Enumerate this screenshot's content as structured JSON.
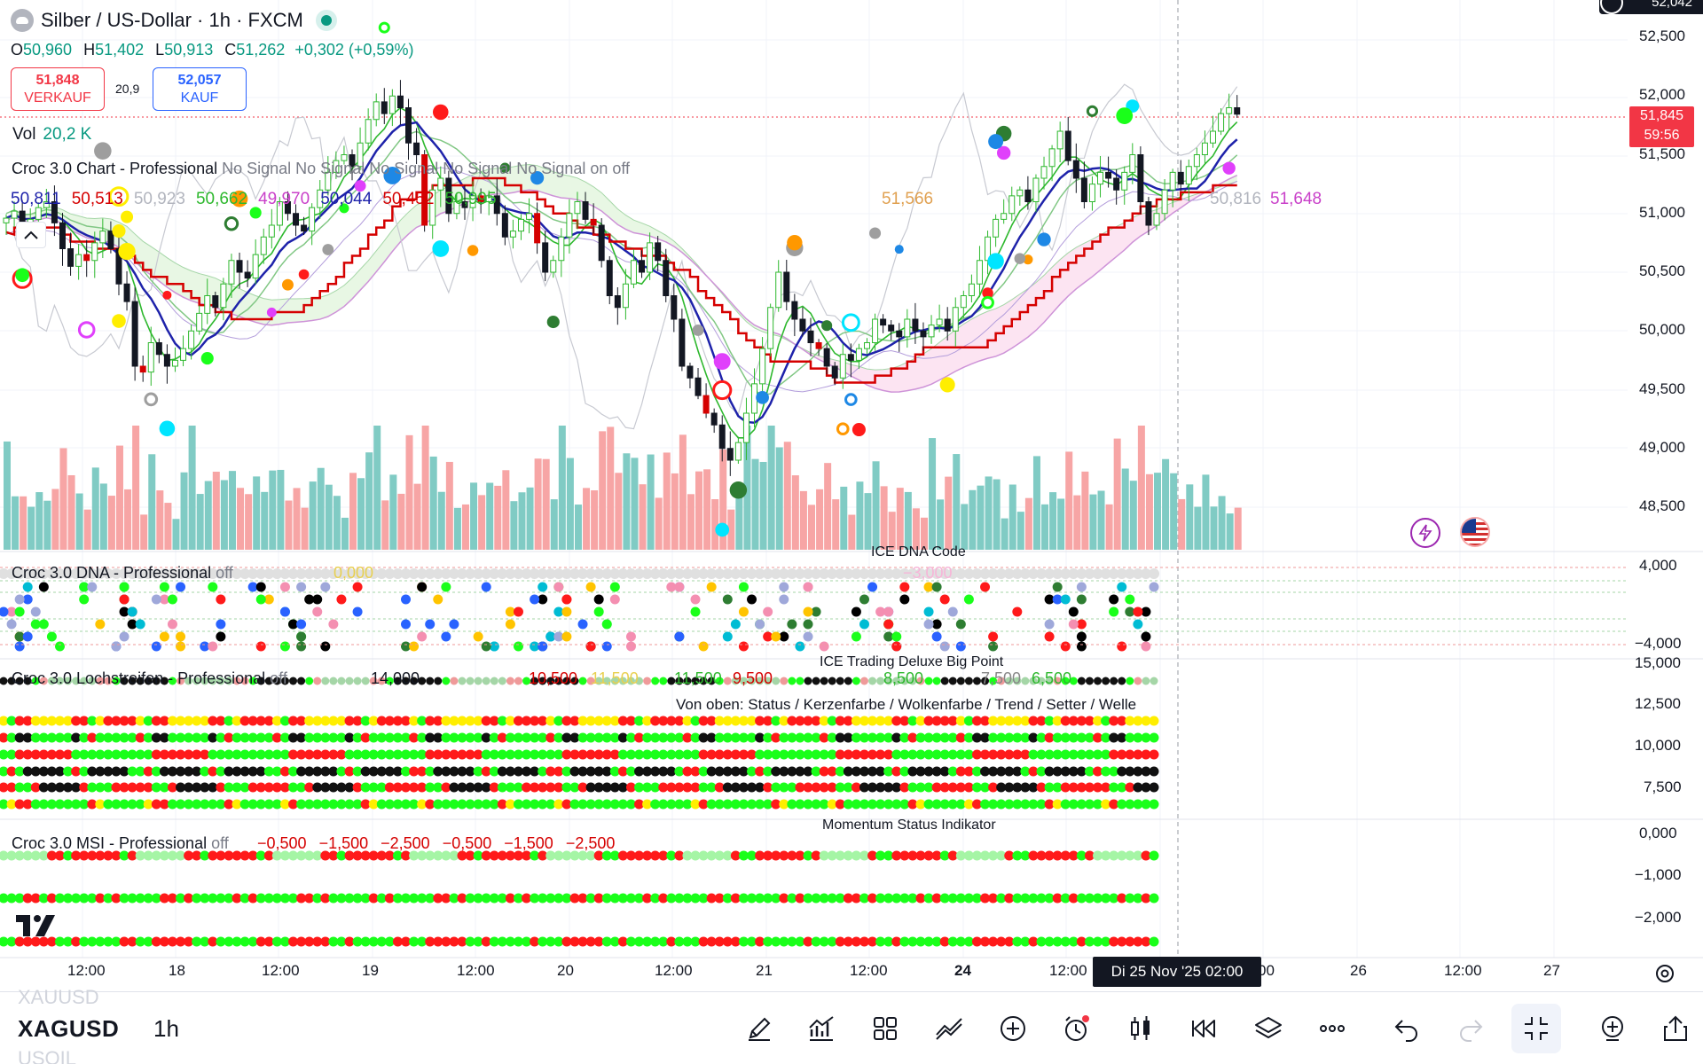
{
  "symbol": {
    "title": "Silber / US-Dollar · 1h · FXCM",
    "ticker": "XAGUSD",
    "ticker_above": "XAUUSD",
    "ticker_below": "USOIL",
    "interval": "1h"
  },
  "ohlc": {
    "o_key": "O",
    "o": "50,960",
    "h_key": "H",
    "h": "51,402",
    "l_key": "L",
    "l": "50,913",
    "c_key": "C",
    "c": "51,262",
    "change": "+0,302 (+0,59%)"
  },
  "trade": {
    "sell_price": "51,848",
    "sell_label": "VERKAUF",
    "spread": "20,9",
    "buy_price": "52,057",
    "buy_label": "KAUF"
  },
  "volume": {
    "label": "Vol",
    "value": "20,2 K"
  },
  "indicator_chart": {
    "name": "Croc 3.0 Chart - Professional",
    "signals": "No Signal No Signal No Signal No Signal No Signal on off",
    "values": [
      {
        "text": "50,811",
        "color": "#1e22aa"
      },
      {
        "text": "50,513",
        "color": "#d50000"
      },
      {
        "text": "50,923",
        "color": "#b2b5be"
      },
      {
        "text": "50,662",
        "color": "#2eb82e"
      },
      {
        "text": "49,970",
        "color": "#c940c9"
      },
      {
        "text": "50,044",
        "color": "#1e22aa"
      },
      {
        "text": "50,452",
        "color": "#d50000"
      },
      {
        "text": "50,995",
        "color": "#2eb82e"
      }
    ],
    "extra_value": "51,566",
    "extra_value2": "50,816",
    "extra_value3": "51,648"
  },
  "price_axis": {
    "labels": [
      "52,500",
      "52,000",
      "51,500",
      "51,000",
      "50,500",
      "50,000",
      "49,500",
      "49,000",
      "48,500"
    ],
    "top_label": "52,042",
    "current_price": "51,845",
    "countdown": "59:56"
  },
  "dna_pane": {
    "name": "Croc 3.0 DNA - Professional",
    "off": "off",
    "subtitle": "ICE DNA Code",
    "val_a": "0,000",
    "val_b": "−3,000",
    "axis": [
      "4,000",
      "−4,000"
    ]
  },
  "loch_pane": {
    "name": "Croc 3.0 Lochstreifen - Professional",
    "off": "off",
    "subtitle": "ICE Trading Deluxe Big Point",
    "caption": "Von oben: Status / Kerzenfarbe / Wolkenfarbe / Trend / Setter / Welle",
    "vals": [
      "14,000",
      "10,500",
      "11,500",
      "11,500",
      "9,500",
      "8,500",
      "7,500",
      "6,500"
    ],
    "axis": [
      "15,000",
      "12,500",
      "10,000",
      "7,500"
    ]
  },
  "msi_pane": {
    "name": "Croc 3.0 MSI - Professional",
    "off": "off",
    "subtitle": "Momentum Status Indikator",
    "vals": [
      "−0,500",
      "−1,500",
      "−2,500",
      "−0,500",
      "−1,500",
      "−2,500"
    ],
    "axis": [
      "0,000",
      "−1,000",
      "−2,000"
    ]
  },
  "time_axis": {
    "labels": [
      "12:00",
      "18",
      "12:00",
      "19",
      "12:00",
      "20",
      "12:00",
      "21",
      "12:00",
      "24",
      "12:00",
      "00",
      "26",
      "12:00",
      "27"
    ],
    "crosshair": "Di 25 Nov '25  02:00"
  },
  "toolbar": {
    "tools": [
      "pencil-icon",
      "indicators-icon",
      "grid-icon",
      "drawings-icon",
      "add-icon",
      "alert-icon",
      "candle-style-icon",
      "replay-icon",
      "layers-icon",
      "more-icon",
      "undo-icon",
      "redo-icon",
      "fullscreen-exit-icon",
      "add-pane-icon",
      "share-icon"
    ]
  },
  "colors": {
    "up": "#26a69a",
    "down": "#ef5350",
    "vol_up": "#80cbc4",
    "vol_down": "#f7a5a5",
    "tenkan": "#1e22aa",
    "kijun": "#d50000",
    "cloud_pink": "#fce4f2",
    "cloud_green": "#e8f7e4",
    "dot_red": "#ff1a1a",
    "dot_green": "#1aff1a",
    "dot_black": "#111111",
    "dot_yellow": "#ffee00"
  },
  "chart_data": {
    "type": "candlestick",
    "ylim": [
      48200,
      52700
    ],
    "y_ticks": [
      52500,
      52000,
      51500,
      51000,
      50500,
      50000,
      49500,
      49000,
      48500
    ],
    "current": 51845,
    "close": [
      50960,
      51020,
      50880,
      50950,
      51050,
      51100,
      50920,
      50700,
      50550,
      50650,
      50600,
      50750,
      50850,
      50700,
      50400,
      50250,
      49700,
      49650,
      49900,
      49800,
      49700,
      49750,
      49850,
      50000,
      50150,
      50300,
      50200,
      50400,
      50600,
      50500,
      50450,
      50650,
      50800,
      50900,
      51100,
      51000,
      50900,
      50850,
      51050,
      51200,
      51350,
      51450,
      51500,
      51400,
      51600,
      51800,
      51950,
      51850,
      52000,
      51900,
      51600,
      51500,
      50900,
      51200,
      51300,
      51000,
      51100,
      51050,
      51150,
      51100,
      51150,
      51000,
      50800,
      50850,
      50950,
      51000,
      50750,
      50500,
      50600,
      50800,
      51000,
      51100,
      50950,
      50900,
      50600,
      50300,
      50200,
      50400,
      50600,
      50500,
      50750,
      50600,
      50300,
      50100,
      49700,
      49600,
      49450,
      49300,
      49200,
      49000,
      48900,
      49050,
      49300,
      49550,
      49850,
      50200,
      50500,
      50250,
      50100,
      50000,
      49900,
      49850,
      49700,
      49600,
      49800,
      49750,
      49850,
      49900,
      50100,
      50050,
      50000,
      49950,
      50100,
      50000,
      49950,
      50050,
      50100,
      50000,
      50200,
      50300,
      50400,
      50600,
      50800,
      50950,
      51000,
      51150,
      51200,
      51100,
      51300,
      51400,
      51550,
      51700,
      51450,
      51300,
      51100,
      51250,
      51350,
      51300,
      51200,
      51350,
      51500,
      51100,
      50900,
      51000,
      51200,
      51350,
      51250,
      51400,
      51500,
      51600,
      51700,
      51850,
      51900,
      51845
    ]
  }
}
